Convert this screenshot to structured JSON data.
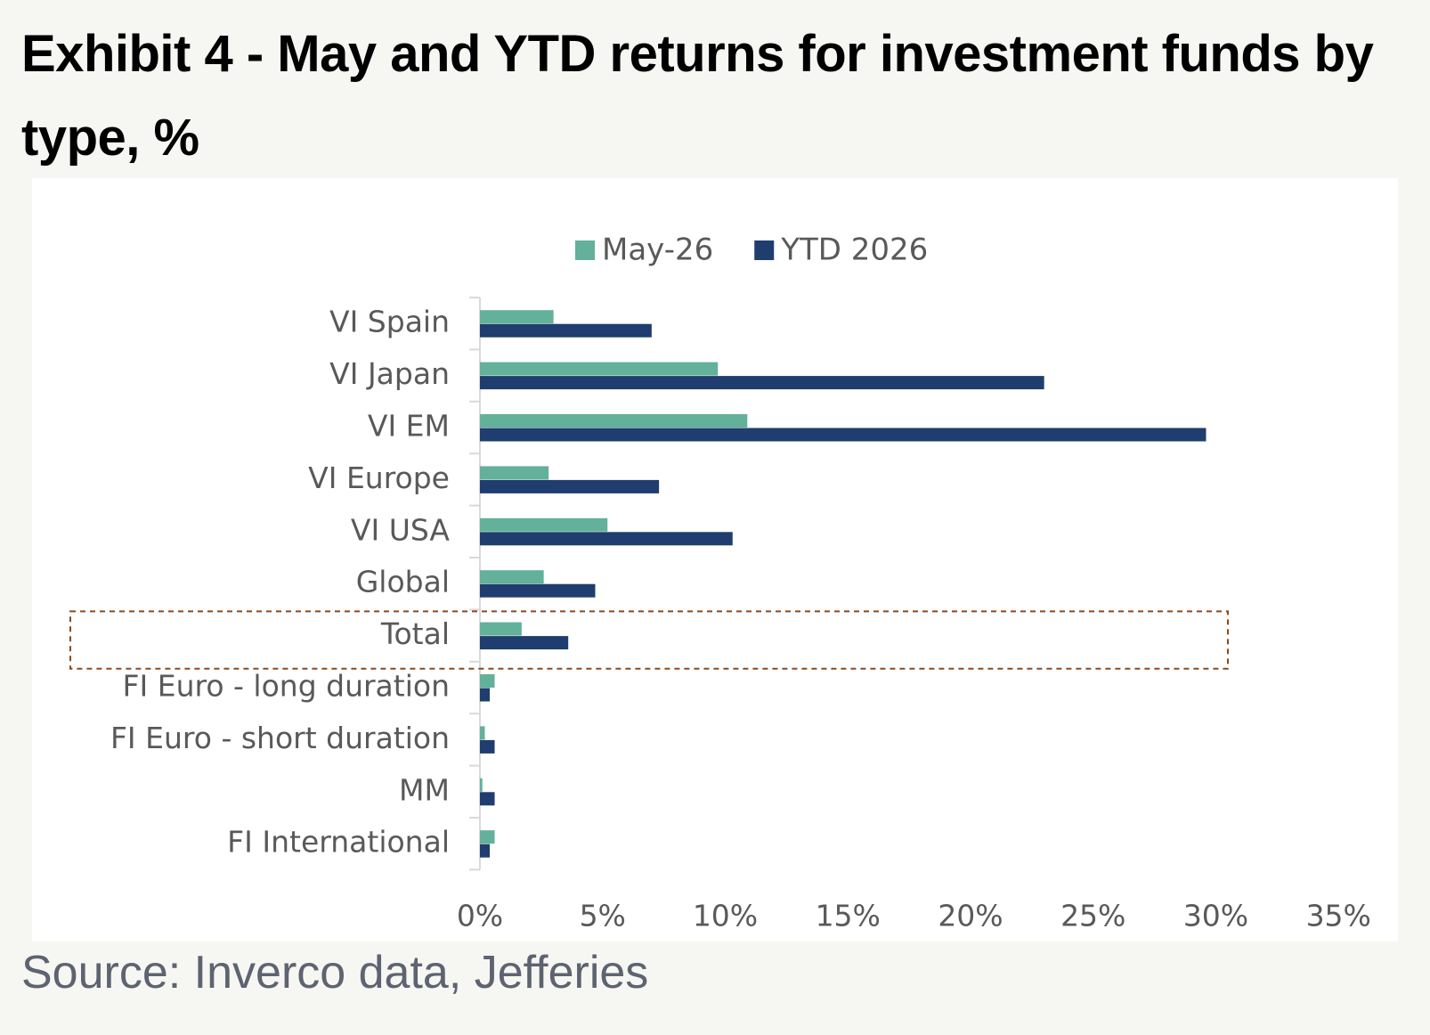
{
  "chart_data": {
    "type": "hbar",
    "title": "Exhibit 4 - May and YTD returns for investment funds by type, %",
    "source": "Source: Inverco data, Jefferies",
    "categories": [
      "VI Spain",
      "VI Japan",
      "VI EM",
      "VI Europe",
      "VI USA",
      "Global",
      "Total",
      "FI Euro - long duration",
      "FI Euro - short duration",
      "MM",
      "FI International"
    ],
    "series": [
      {
        "name": "May-26",
        "color": "#63b09b",
        "values": [
          3.0,
          9.7,
          10.9,
          2.8,
          5.2,
          2.6,
          1.7,
          0.6,
          0.2,
          0.1,
          0.6
        ]
      },
      {
        "name": "YTD 2026",
        "color": "#1f3d6e",
        "values": [
          7.0,
          23.0,
          29.6,
          7.3,
          10.3,
          4.7,
          3.6,
          0.4,
          0.6,
          0.6,
          0.4
        ]
      }
    ],
    "xlim": [
      0,
      35
    ],
    "xticks": [
      {
        "value": 0,
        "label": "0%"
      },
      {
        "value": 5,
        "label": "5%"
      },
      {
        "value": 10,
        "label": "10%"
      },
      {
        "value": 15,
        "label": "15%"
      },
      {
        "value": 20,
        "label": "20%"
      },
      {
        "value": 25,
        "label": "25%"
      },
      {
        "value": 30,
        "label": "30%"
      },
      {
        "value": 35,
        "label": "35%"
      }
    ],
    "legend": "top"
  }
}
